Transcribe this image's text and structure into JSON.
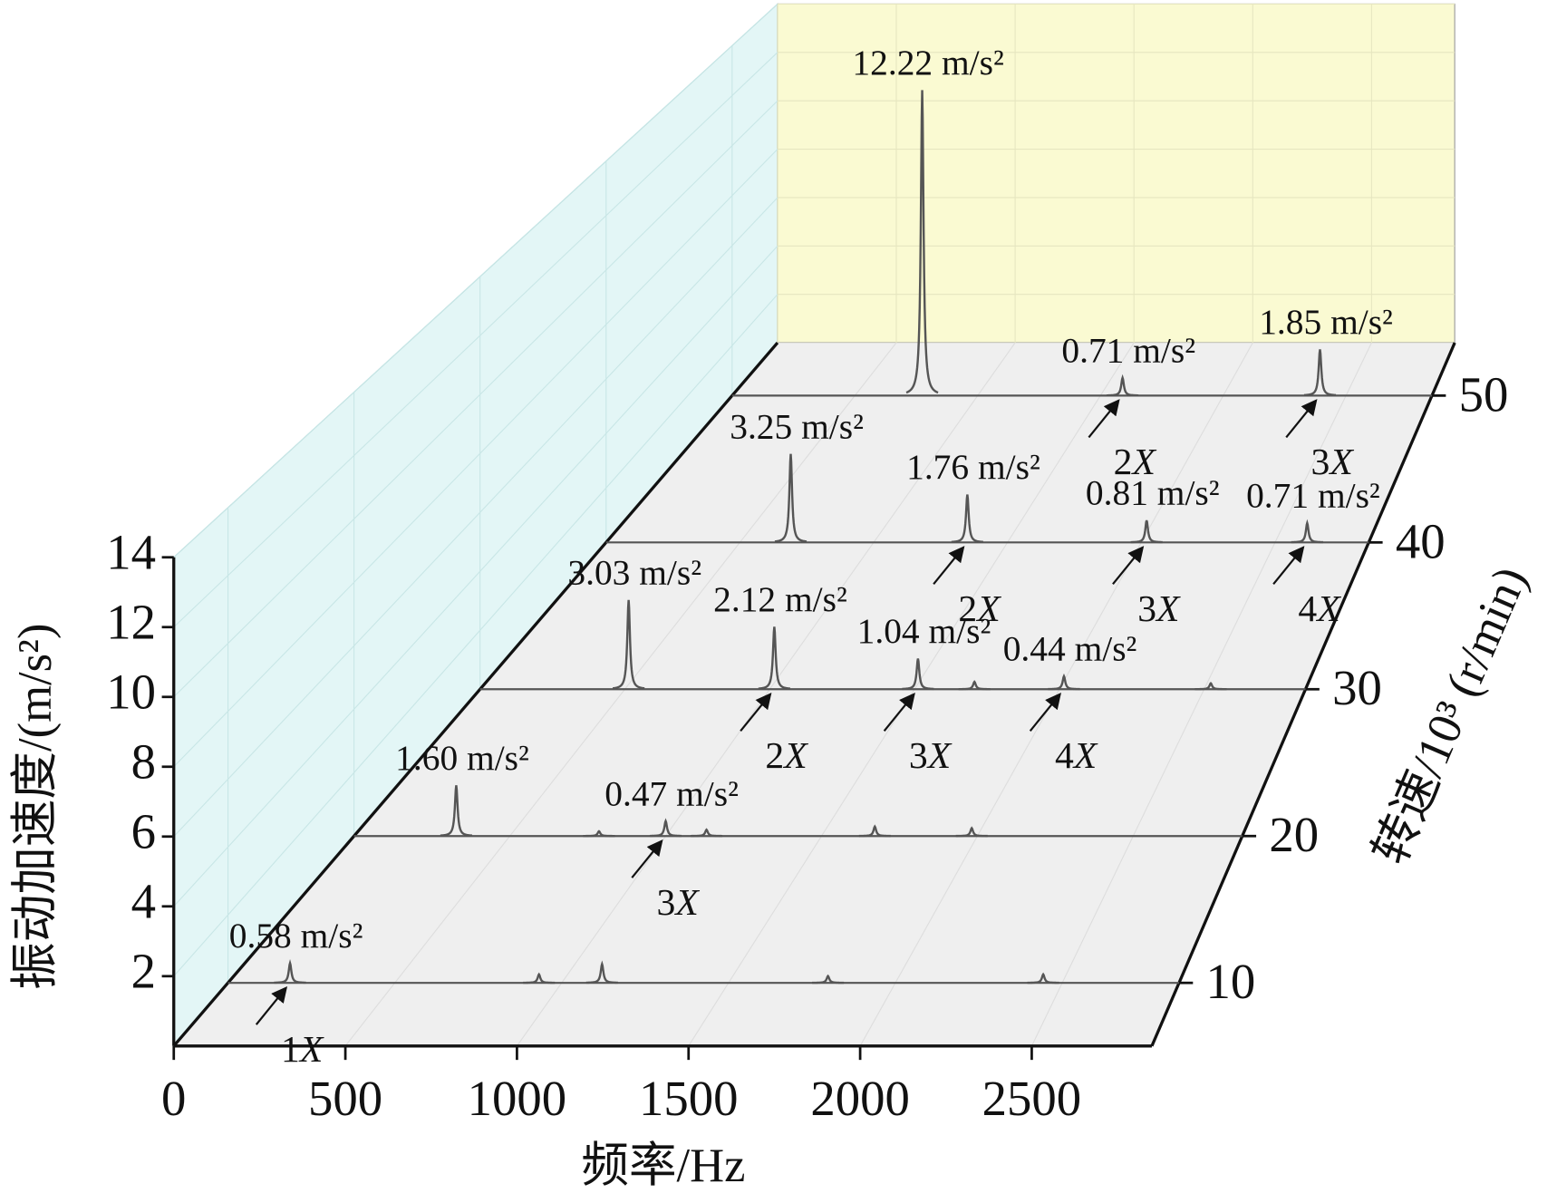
{
  "chart_data": {
    "type": "waterfall",
    "x_label": "频率/Hz",
    "y_label": "振动加速度/(m/s²)",
    "z_label": "转速/10³ (r/min)",
    "xlim": [
      0,
      2850
    ],
    "xticks": [
      0,
      500,
      1000,
      1500,
      2000,
      2500
    ],
    "ylim": [
      0,
      14
    ],
    "yticks": [
      2,
      4,
      6,
      8,
      10,
      12,
      14
    ],
    "zlim": [
      5.7,
      53.6
    ],
    "zticks": [
      10,
      20,
      30,
      40,
      50
    ],
    "grid": true,
    "line_color": "#555555",
    "floor_color": "#efefef",
    "left_wall_color": "#e3f6f6",
    "back_wall_color": "#fafad2",
    "series": [
      {
        "z": 10,
        "peaks": [
          {
            "x": 186,
            "value": 0.58,
            "value_label": "0.58 m/s²",
            "harmonic": "1X"
          },
          {
            "x": 932,
            "value": 0.25
          },
          {
            "x": 1121,
            "value": 0.55
          },
          {
            "x": 1798,
            "value": 0.2
          },
          {
            "x": 2443,
            "value": 0.25
          }
        ]
      },
      {
        "z": 20,
        "peaks": [
          {
            "x": 328,
            "value": 1.6,
            "value_label": "1.60 m/s²"
          },
          {
            "x": 1000,
            "value": 0.47,
            "value_label": "0.47 m/s²",
            "harmonic": "3X"
          },
          {
            "x": 786,
            "value": 0.15
          },
          {
            "x": 1131,
            "value": 0.2
          },
          {
            "x": 1671,
            "value": 0.3
          },
          {
            "x": 1982,
            "value": 0.25
          }
        ]
      },
      {
        "z": 30,
        "peaks": [
          {
            "x": 513,
            "value": 3.03,
            "value_label": "3.03 m/s²"
          },
          {
            "x": 1016,
            "value": 2.12,
            "value_label": "2.12 m/s²",
            "harmonic": "2X"
          },
          {
            "x": 1512,
            "value": 1.04,
            "value_label": "1.04 m/s²",
            "harmonic": "3X"
          },
          {
            "x": 2016,
            "value": 0.44,
            "value_label": "0.44 m/s²",
            "harmonic": "4X"
          },
          {
            "x": 1707,
            "value": 0.25
          },
          {
            "x": 2523,
            "value": 0.2
          }
        ]
      },
      {
        "z": 40,
        "peaks": [
          {
            "x": 690,
            "value": 3.25,
            "value_label": "3.25 m/s²"
          },
          {
            "x": 1350,
            "value": 1.76,
            "value_label": "1.76 m/s²",
            "harmonic": "2X"
          },
          {
            "x": 2020,
            "value": 0.81,
            "value_label": "0.81 m/s²",
            "harmonic": "3X"
          },
          {
            "x": 2620,
            "value": 0.71,
            "value_label": "0.71 m/s²",
            "harmonic": "4X"
          }
        ]
      },
      {
        "z": 50,
        "peaks": [
          {
            "x": 774,
            "value": 12.22,
            "value_label": "12.22 m/s²"
          },
          {
            "x": 1590,
            "value": 0.71,
            "value_label": "0.71 m/s²",
            "harmonic": "2X"
          },
          {
            "x": 2394,
            "value": 1.85,
            "value_label": "1.85 m/s²",
            "harmonic": "3X"
          }
        ]
      }
    ]
  }
}
